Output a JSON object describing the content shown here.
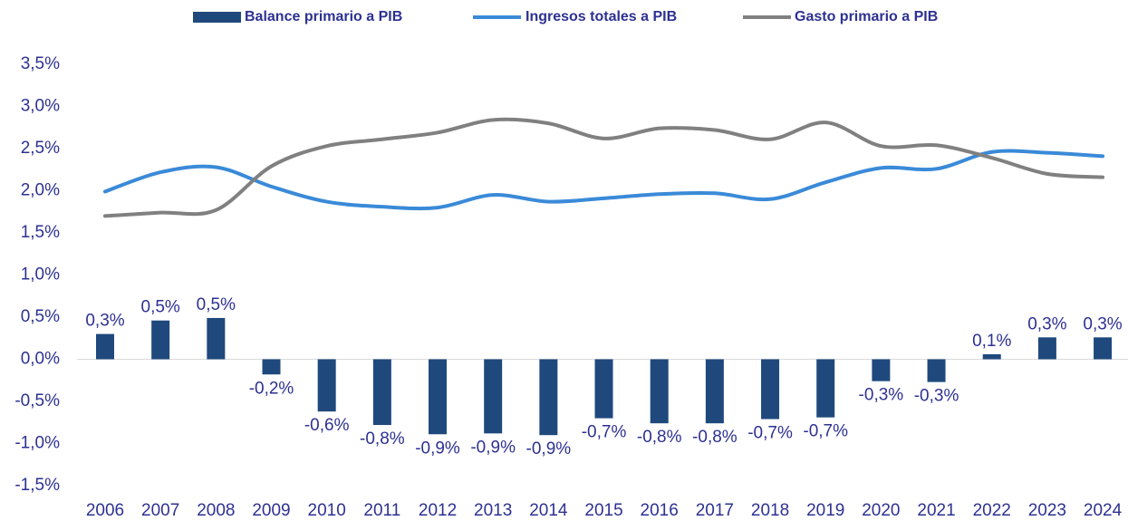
{
  "chart_data": {
    "type": "combo",
    "categories": [
      "2006",
      "2007",
      "2008",
      "2009",
      "2010",
      "2011",
      "2012",
      "2013",
      "2014",
      "2015",
      "2016",
      "2017",
      "2018",
      "2019",
      "2020",
      "2021",
      "2022",
      "2023",
      "2024"
    ],
    "series": [
      {
        "name": "Balance primario a PIB",
        "type": "bar",
        "color": "#1f497d",
        "values": [
          0.3,
          0.46,
          0.49,
          -0.18,
          -0.62,
          -0.78,
          -0.89,
          -0.88,
          -0.9,
          -0.7,
          -0.76,
          -0.76,
          -0.71,
          -0.69,
          -0.26,
          -0.27,
          0.06,
          0.26,
          0.26
        ],
        "value_labels": [
          "0,3%",
          "0,5%",
          "0,5%",
          "-0,2%",
          "-0,6%",
          "-0,8%",
          "-0,9%",
          "-0,9%",
          "-0,9%",
          "-0,7%",
          "-0,8%",
          "-0,8%",
          "-0,7%",
          "-0,7%",
          "-0,3%",
          "-0,3%",
          "0,1%",
          "0,3%",
          "0,3%"
        ]
      },
      {
        "name": "Ingresos totales a PIB",
        "type": "line",
        "color": "#3a8ad8",
        "values": [
          1.99,
          2.22,
          2.28,
          2.05,
          1.87,
          1.81,
          1.8,
          1.95,
          1.87,
          1.91,
          1.96,
          1.97,
          1.9,
          2.1,
          2.27,
          2.26,
          2.46,
          2.45,
          2.41
        ]
      },
      {
        "name": "Gasto primario a PIB",
        "type": "line",
        "color": "#808080",
        "values": [
          1.7,
          1.74,
          1.77,
          2.29,
          2.53,
          2.61,
          2.69,
          2.84,
          2.8,
          2.62,
          2.74,
          2.72,
          2.61,
          2.81,
          2.53,
          2.54,
          2.39,
          2.2,
          2.16
        ]
      }
    ],
    "ylim": [
      -1.5,
      3.5
    ],
    "yticks": [
      {
        "value": -1.5,
        "label": "-1,5%"
      },
      {
        "value": -1.0,
        "label": "-1,0%"
      },
      {
        "value": -0.5,
        "label": "-0,5%"
      },
      {
        "value": 0,
        "label": "0,0%"
      },
      {
        "value": 0.5,
        "label": "0,5%"
      },
      {
        "value": 1.0,
        "label": "1,0%"
      },
      {
        "value": 1.5,
        "label": "1,5%"
      },
      {
        "value": 2.0,
        "label": "2,0%"
      },
      {
        "value": 2.5,
        "label": "2,5%"
      },
      {
        "value": 3.0,
        "label": "3,0%"
      },
      {
        "value": 3.5,
        "label": "3,5%"
      }
    ],
    "legend": "top"
  }
}
